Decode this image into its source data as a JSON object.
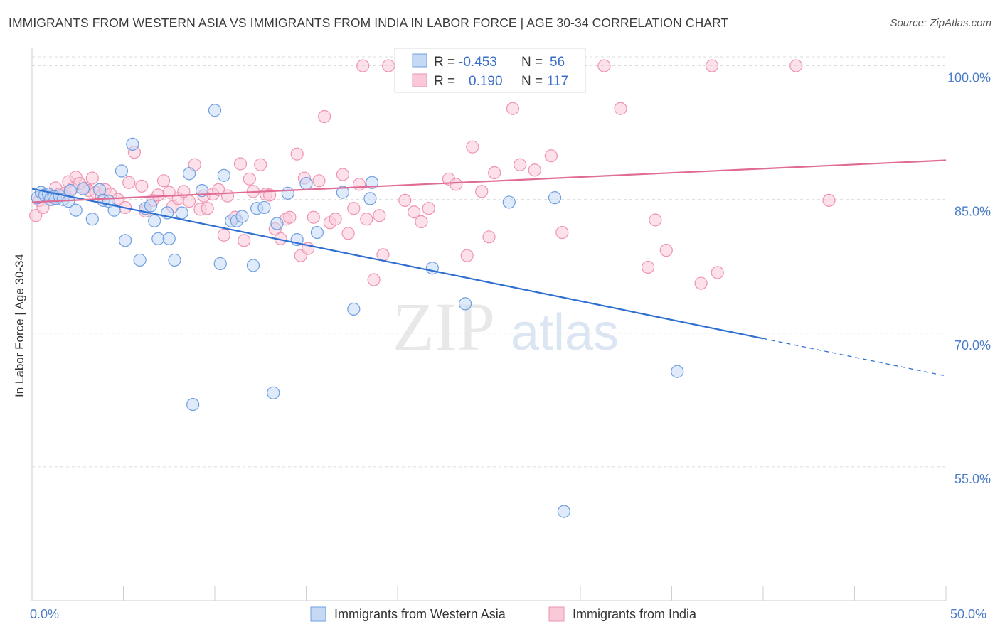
{
  "title": "IMMIGRANTS FROM WESTERN ASIA VS IMMIGRANTS FROM INDIA IN LABOR FORCE | AGE 30-34 CORRELATION CHART",
  "source": "Source: ZipAtlas.com",
  "watermark": {
    "zip": "ZIP",
    "atlas": "atlas"
  },
  "colors": {
    "blue": "#6f9fe0",
    "blue_line": "#2f6fd1",
    "pink": "#ef93b1",
    "pink_line": "#e06b94",
    "axis_text": "#4a7cc7"
  },
  "chart_data": {
    "type": "scatter",
    "title": "IMMIGRANTS FROM WESTERN ASIA VS IMMIGRANTS FROM INDIA IN LABOR FORCE | AGE 30-34 CORRELATION CHART",
    "xlabel": "",
    "ylabel": "In Labor Force | Age 30-34",
    "xlim": [
      0,
      50
    ],
    "ylim": [
      40,
      101
    ],
    "x_tick_labels": [
      "0.0%",
      "50.0%"
    ],
    "y_ticks": [
      55,
      70,
      85,
      100
    ],
    "y_tick_labels": [
      "55.0%",
      "70.0%",
      "85.0%",
      "100.0%"
    ],
    "grid": true,
    "legend_placement": "top-center",
    "legend": {
      "entries": [
        {
          "r_label": "R =",
          "r_value": "-0.453",
          "n_label": "N =",
          "n_value": "56"
        },
        {
          "r_label": "R =",
          "r_value": "0.190",
          "n_label": "N =",
          "n_value": "117"
        }
      ]
    },
    "series": [
      {
        "name": "Immigrants from Western Asia",
        "color": "#6f9fe0",
        "trend": {
          "x0": 0,
          "y0": 86.2,
          "x1": 40,
          "y1": 69.4,
          "dashed_to_x": 50,
          "dashed_to_y": 65.2
        },
        "points": [
          [
            0.3,
            85.2
          ],
          [
            0.5,
            85.8
          ],
          [
            0.7,
            85.5
          ],
          [
            0.9,
            85.6
          ],
          [
            1.0,
            85.0
          ],
          [
            1.2,
            85.3
          ],
          [
            1.3,
            85.1
          ],
          [
            1.5,
            85.4
          ],
          [
            1.7,
            85.0
          ],
          [
            2.0,
            84.8
          ],
          [
            2.1,
            86.0
          ],
          [
            2.4,
            83.8
          ],
          [
            2.8,
            86.2
          ],
          [
            3.3,
            82.8
          ],
          [
            3.7,
            86.1
          ],
          [
            3.9,
            84.9
          ],
          [
            4.2,
            84.8
          ],
          [
            4.5,
            83.8
          ],
          [
            4.9,
            88.2
          ],
          [
            5.1,
            80.4
          ],
          [
            5.5,
            91.2
          ],
          [
            5.9,
            78.2
          ],
          [
            6.2,
            84.0
          ],
          [
            6.5,
            84.3
          ],
          [
            6.7,
            82.6
          ],
          [
            6.9,
            80.6
          ],
          [
            7.4,
            83.5
          ],
          [
            7.5,
            80.6
          ],
          [
            7.8,
            78.2
          ],
          [
            8.2,
            83.5
          ],
          [
            8.6,
            87.9
          ],
          [
            8.8,
            62.0
          ],
          [
            9.3,
            86.0
          ],
          [
            10.0,
            95.0
          ],
          [
            10.3,
            77.8
          ],
          [
            10.5,
            87.7
          ],
          [
            10.9,
            82.6
          ],
          [
            11.2,
            82.6
          ],
          [
            11.5,
            83.1
          ],
          [
            12.1,
            77.6
          ],
          [
            12.3,
            84.0
          ],
          [
            12.7,
            84.1
          ],
          [
            13.2,
            63.3
          ],
          [
            13.4,
            82.3
          ],
          [
            14.0,
            85.7
          ],
          [
            14.5,
            80.5
          ],
          [
            15.0,
            86.8
          ],
          [
            15.6,
            81.3
          ],
          [
            17.0,
            85.8
          ],
          [
            17.6,
            72.7
          ],
          [
            18.5,
            85.1
          ],
          [
            18.6,
            86.9
          ],
          [
            21.9,
            77.3
          ],
          [
            23.7,
            73.3
          ],
          [
            26.1,
            84.7
          ],
          [
            28.6,
            85.2
          ],
          [
            29.1,
            50.0
          ],
          [
            35.3,
            65.7
          ]
        ]
      },
      {
        "name": "Immigrants from India",
        "color": "#ef93b1",
        "trend": {
          "x0": 0,
          "y0": 84.7,
          "x1": 50,
          "y1": 89.4
        },
        "points": [
          [
            0.2,
            83.2
          ],
          [
            0.4,
            84.9
          ],
          [
            0.6,
            84.1
          ],
          [
            0.9,
            85.3
          ],
          [
            1.1,
            85.0
          ],
          [
            1.3,
            86.3
          ],
          [
            1.5,
            85.6
          ],
          [
            1.8,
            85.7
          ],
          [
            2.0,
            87.0
          ],
          [
            2.2,
            86.2
          ],
          [
            2.4,
            87.5
          ],
          [
            2.6,
            86.8
          ],
          [
            2.9,
            86.3
          ],
          [
            3.1,
            86.0
          ],
          [
            3.3,
            87.4
          ],
          [
            3.5,
            85.8
          ],
          [
            3.8,
            85.4
          ],
          [
            4.0,
            86.1
          ],
          [
            4.3,
            85.6
          ],
          [
            4.7,
            85.0
          ],
          [
            5.1,
            84.1
          ],
          [
            5.3,
            86.9
          ],
          [
            5.6,
            90.3
          ],
          [
            6.0,
            86.5
          ],
          [
            6.2,
            83.7
          ],
          [
            6.6,
            84.9
          ],
          [
            6.9,
            85.5
          ],
          [
            7.2,
            87.1
          ],
          [
            7.5,
            85.8
          ],
          [
            7.7,
            84.2
          ],
          [
            8.0,
            85.1
          ],
          [
            8.3,
            85.9
          ],
          [
            8.6,
            84.8
          ],
          [
            8.9,
            88.9
          ],
          [
            9.2,
            83.9
          ],
          [
            9.4,
            85.4
          ],
          [
            9.6,
            84.0
          ],
          [
            9.9,
            85.6
          ],
          [
            10.2,
            86.1
          ],
          [
            10.5,
            81.0
          ],
          [
            10.7,
            85.4
          ],
          [
            11.1,
            83.0
          ],
          [
            11.4,
            89.0
          ],
          [
            11.6,
            80.4
          ],
          [
            11.9,
            87.3
          ],
          [
            12.1,
            85.9
          ],
          [
            12.5,
            88.9
          ],
          [
            12.8,
            85.6
          ],
          [
            13.0,
            85.5
          ],
          [
            13.3,
            81.7
          ],
          [
            13.6,
            80.6
          ],
          [
            13.9,
            82.8
          ],
          [
            14.1,
            83.0
          ],
          [
            14.5,
            90.1
          ],
          [
            14.7,
            78.7
          ],
          [
            14.9,
            87.4
          ],
          [
            15.1,
            79.5
          ],
          [
            15.4,
            83.0
          ],
          [
            15.7,
            87.1
          ],
          [
            16.0,
            94.3
          ],
          [
            16.3,
            82.4
          ],
          [
            16.6,
            82.8
          ],
          [
            17.0,
            87.8
          ],
          [
            17.3,
            81.2
          ],
          [
            17.6,
            84.0
          ],
          [
            17.9,
            86.7
          ],
          [
            18.3,
            82.8
          ],
          [
            18.7,
            76.0
          ],
          [
            19.0,
            83.2
          ],
          [
            19.2,
            78.8
          ],
          [
            20.4,
            84.9
          ],
          [
            20.9,
            83.6
          ],
          [
            21.3,
            82.5
          ],
          [
            21.7,
            84.0
          ],
          [
            22.8,
            87.3
          ],
          [
            23.2,
            86.7
          ],
          [
            23.8,
            78.7
          ],
          [
            24.1,
            90.9
          ],
          [
            24.6,
            85.9
          ],
          [
            25.0,
            80.8
          ],
          [
            25.3,
            88.0
          ],
          [
            26.3,
            95.2
          ],
          [
            26.7,
            88.9
          ],
          [
            27.5,
            88.3
          ],
          [
            28.4,
            89.9
          ],
          [
            29.0,
            81.3
          ],
          [
            31.3,
            100.0
          ],
          [
            32.2,
            95.2
          ],
          [
            33.7,
            77.4
          ],
          [
            34.1,
            82.7
          ],
          [
            34.7,
            79.3
          ],
          [
            36.6,
            75.6
          ],
          [
            37.5,
            76.8
          ],
          [
            37.2,
            100.0
          ],
          [
            41.8,
            100.0
          ],
          [
            43.6,
            84.9
          ],
          [
            18.1,
            100.0
          ],
          [
            19.5,
            100.0
          ]
        ]
      }
    ]
  },
  "bottom_legend": [
    {
      "label": "Immigrants from Western Asia"
    },
    {
      "label": "Immigrants from India"
    }
  ]
}
